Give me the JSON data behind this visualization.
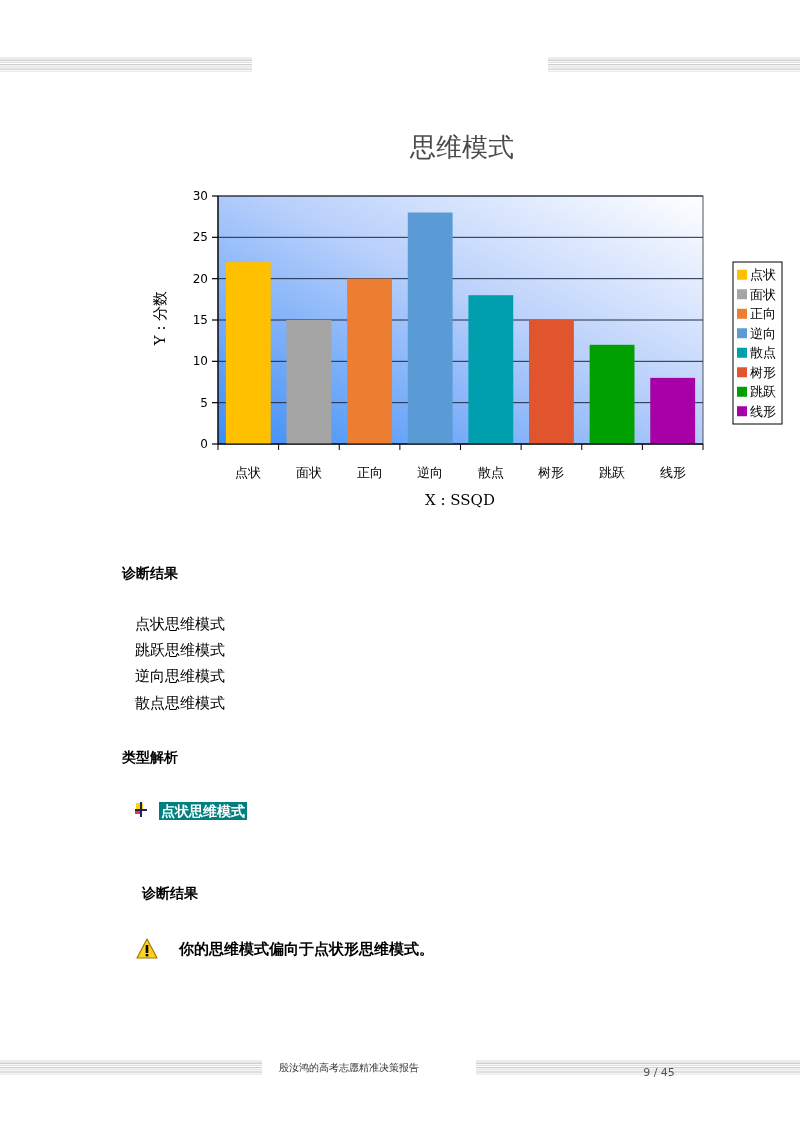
{
  "chart_data": {
    "type": "bar",
    "title": "思维模式",
    "xlabel": "X : SSQD",
    "ylabel": "Y : 分数",
    "categories": [
      "点状",
      "面状",
      "正向",
      "逆向",
      "散点",
      "树形",
      "跳跃",
      "线形"
    ],
    "series": [
      {
        "name": "点状",
        "color": "#ffc000",
        "values": [
          22,
          null,
          null,
          null,
          null,
          null,
          null,
          null
        ]
      },
      {
        "name": "面状",
        "color": "#a5a5a5",
        "values": [
          null,
          15,
          null,
          null,
          null,
          null,
          null,
          null
        ]
      },
      {
        "name": "正向",
        "color": "#ed7d31",
        "values": [
          null,
          null,
          20,
          null,
          null,
          null,
          null,
          null
        ]
      },
      {
        "name": "逆向",
        "color": "#5b9bd5",
        "values": [
          null,
          null,
          null,
          28,
          null,
          null,
          null,
          null
        ]
      },
      {
        "name": "散点",
        "color": "#009fae",
        "values": [
          null,
          null,
          null,
          null,
          18,
          null,
          null,
          null
        ]
      },
      {
        "name": "树形",
        "color": "#e0552d",
        "values": [
          null,
          null,
          null,
          null,
          null,
          15,
          null,
          null
        ]
      },
      {
        "name": "跳跃",
        "color": "#00a000",
        "values": [
          null,
          null,
          null,
          null,
          null,
          null,
          12,
          null
        ]
      },
      {
        "name": "线形",
        "color": "#a600a6",
        "values": [
          null,
          null,
          null,
          null,
          null,
          null,
          null,
          8
        ]
      }
    ],
    "ylim": [
      0,
      30
    ],
    "yticks": [
      0,
      5,
      10,
      15,
      20,
      25,
      30
    ],
    "grid": "y",
    "legend": "right",
    "annotations": [
      "诊断结果",
      "点状思维模式",
      "跳跃思维模式",
      "逆向思维模式",
      "散点思维模式",
      "类型解析",
      "点状思维模式",
      "诊断结果",
      "你的思维模式偏向于点状形思维模式。",
      "殷汝鸿的高考志愿精准决策报告",
      "9 / 45"
    ]
  }
}
